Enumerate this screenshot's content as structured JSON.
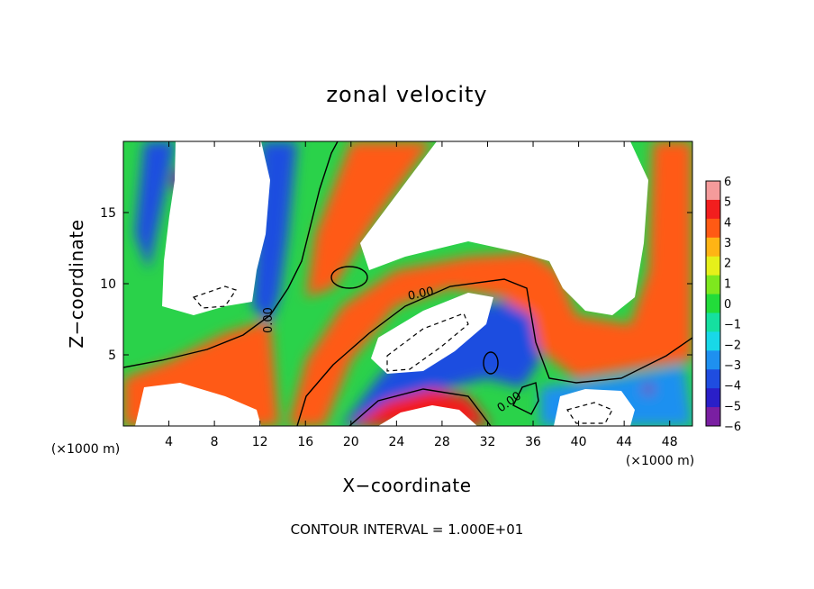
{
  "chart_data": {
    "type": "heatmap",
    "title": "zonal velocity",
    "xlabel": "X−coordinate",
    "ylabel": "Z−coordinate",
    "x_unit": "(×1000 m)",
    "y_unit": "(×1000 m)",
    "xlim": [
      0,
      50
    ],
    "ylim": [
      0,
      20
    ],
    "x_ticks": [
      4,
      8,
      12,
      16,
      20,
      24,
      28,
      32,
      36,
      40,
      44,
      48
    ],
    "y_ticks": [
      5,
      10,
      15
    ],
    "colorbar": {
      "range": [
        -6,
        6
      ],
      "ticks": [
        "6",
        "5",
        "4",
        "3",
        "2",
        "1",
        "0",
        "−1",
        "−2",
        "−3",
        "−4",
        "−5",
        "−6"
      ],
      "stops": [
        {
          "value": -6,
          "color": "#7a1fa2"
        },
        {
          "value": -5,
          "color": "#2a1fc8"
        },
        {
          "value": -4,
          "color": "#1f4de0"
        },
        {
          "value": -3,
          "color": "#1e90f0"
        },
        {
          "value": -2,
          "color": "#18d8e8"
        },
        {
          "value": -1,
          "color": "#15e0a0"
        },
        {
          "value": 0,
          "color": "#22dc3a"
        },
        {
          "value": 1,
          "color": "#7ee81e"
        },
        {
          "value": 2,
          "color": "#e6f01a"
        },
        {
          "value": 3,
          "color": "#ffb414"
        },
        {
          "value": 4,
          "color": "#ff5a14"
        },
        {
          "value": 5,
          "color": "#f21e1e"
        },
        {
          "value": 6,
          "color": "#f59b9b"
        }
      ]
    },
    "contour_label": "0.00",
    "contour_interval_text": "CONTOUR INTERVAL = 1.000E+01"
  }
}
